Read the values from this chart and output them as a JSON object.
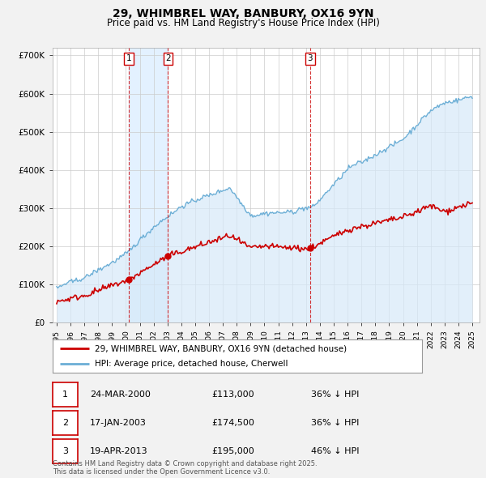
{
  "title": "29, WHIMBREL WAY, BANBURY, OX16 9YN",
  "subtitle": "Price paid vs. HM Land Registry's House Price Index (HPI)",
  "background_color": "#f2f2f2",
  "plot_bg_color": "#ffffff",
  "ylim": [
    0,
    720000
  ],
  "yticks": [
    0,
    100000,
    200000,
    300000,
    400000,
    500000,
    600000,
    700000
  ],
  "ytick_labels": [
    "£0",
    "£100K",
    "£200K",
    "£300K",
    "£400K",
    "£500K",
    "£600K",
    "£700K"
  ],
  "sale_dates_num": [
    2000.23,
    2003.04,
    2013.3
  ],
  "sale_prices": [
    113000,
    174500,
    195000
  ],
  "sale_labels": [
    "1",
    "2",
    "3"
  ],
  "hpi_color": "#6baed6",
  "hpi_fill_color": "#d6e9f8",
  "red_line_color": "#cc0000",
  "shade_color": "#ddeeff",
  "dashed_line_color": "#cc0000",
  "legend_red_label": "29, WHIMBREL WAY, BANBURY, OX16 9YN (detached house)",
  "legend_blue_label": "HPI: Average price, detached house, Cherwell",
  "table_entries": [
    {
      "label": "1",
      "date": "24-MAR-2000",
      "price": "£113,000",
      "hpi": "36% ↓ HPI"
    },
    {
      "label": "2",
      "date": "17-JAN-2003",
      "price": "£174,500",
      "hpi": "36% ↓ HPI"
    },
    {
      "label": "3",
      "date": "19-APR-2013",
      "price": "£195,000",
      "hpi": "46% ↓ HPI"
    }
  ],
  "footer": "Contains HM Land Registry data © Crown copyright and database right 2025.\nThis data is licensed under the Open Government Licence v3.0."
}
